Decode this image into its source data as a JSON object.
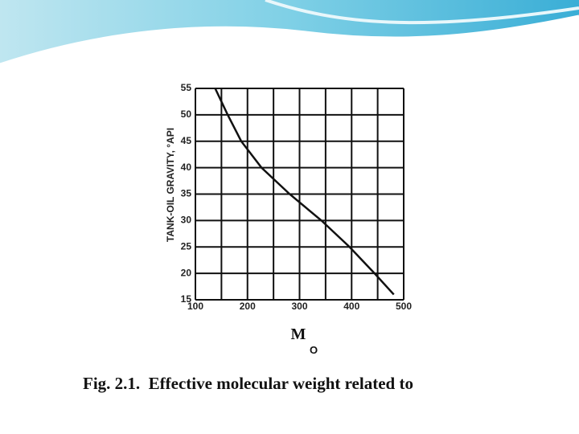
{
  "chart_data": {
    "type": "line",
    "y_label": "TANK-OIL GRAVITY, °API",
    "x_label": "M",
    "x_label_sub": "O",
    "caption": "Fig. 2.1.  Effective molecular weight related to",
    "x": [
      138,
      162,
      188,
      227,
      281,
      342,
      396,
      444,
      481
    ],
    "series": [
      {
        "color": "#111111",
        "values": [
          55,
          50,
          45,
          40,
          35,
          30,
          25,
          20,
          16
        ]
      }
    ],
    "xlim": [
      100,
      500
    ],
    "xticks": [
      100,
      200,
      300,
      400,
      500
    ],
    "x_grid": [
      150,
      250,
      350,
      450
    ],
    "ylim": [
      15,
      55
    ],
    "yticks": [
      15,
      20,
      25,
      30,
      35,
      40,
      45,
      50,
      55
    ],
    "grid": true
  }
}
